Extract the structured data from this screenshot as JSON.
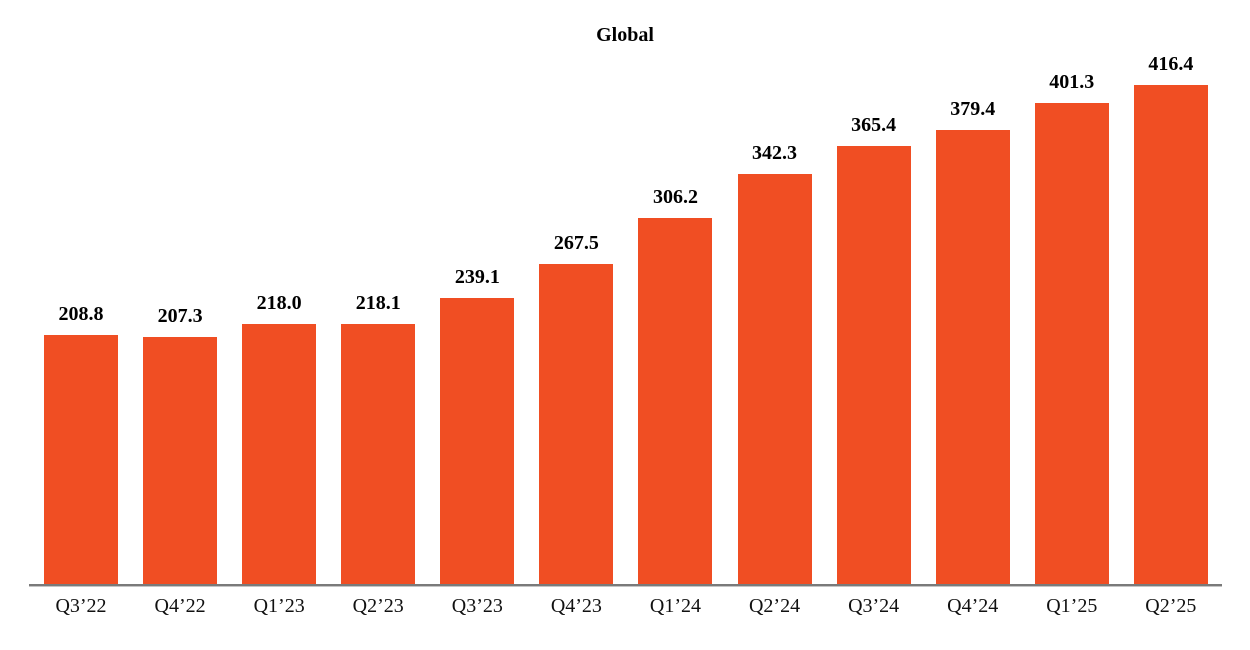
{
  "chart_data": {
    "type": "bar",
    "title": "Global",
    "categories": [
      "Q3’22",
      "Q4’22",
      "Q1’23",
      "Q2’23",
      "Q3’23",
      "Q4’23",
      "Q1’24",
      "Q2’24",
      "Q3’24",
      "Q4’24",
      "Q1’25",
      "Q2’25"
    ],
    "values": [
      208.8,
      207.3,
      218.0,
      218.1,
      239.1,
      267.5,
      306.2,
      342.3,
      365.4,
      379.4,
      401.3,
      416.4
    ],
    "value_labels": [
      "208.8",
      "207.3",
      "218.0",
      "218.1",
      "239.1",
      "267.5",
      "306.2",
      "342.3",
      "365.4",
      "379.4",
      "401.3",
      "416.4"
    ],
    "xlabel": "",
    "ylabel": "",
    "ylim": [
      0,
      420
    ],
    "grid": false,
    "legend_position": "none",
    "bar_color": "#F04E23",
    "axis_line_color": "#7a7a7a",
    "label_color": "#000000"
  }
}
